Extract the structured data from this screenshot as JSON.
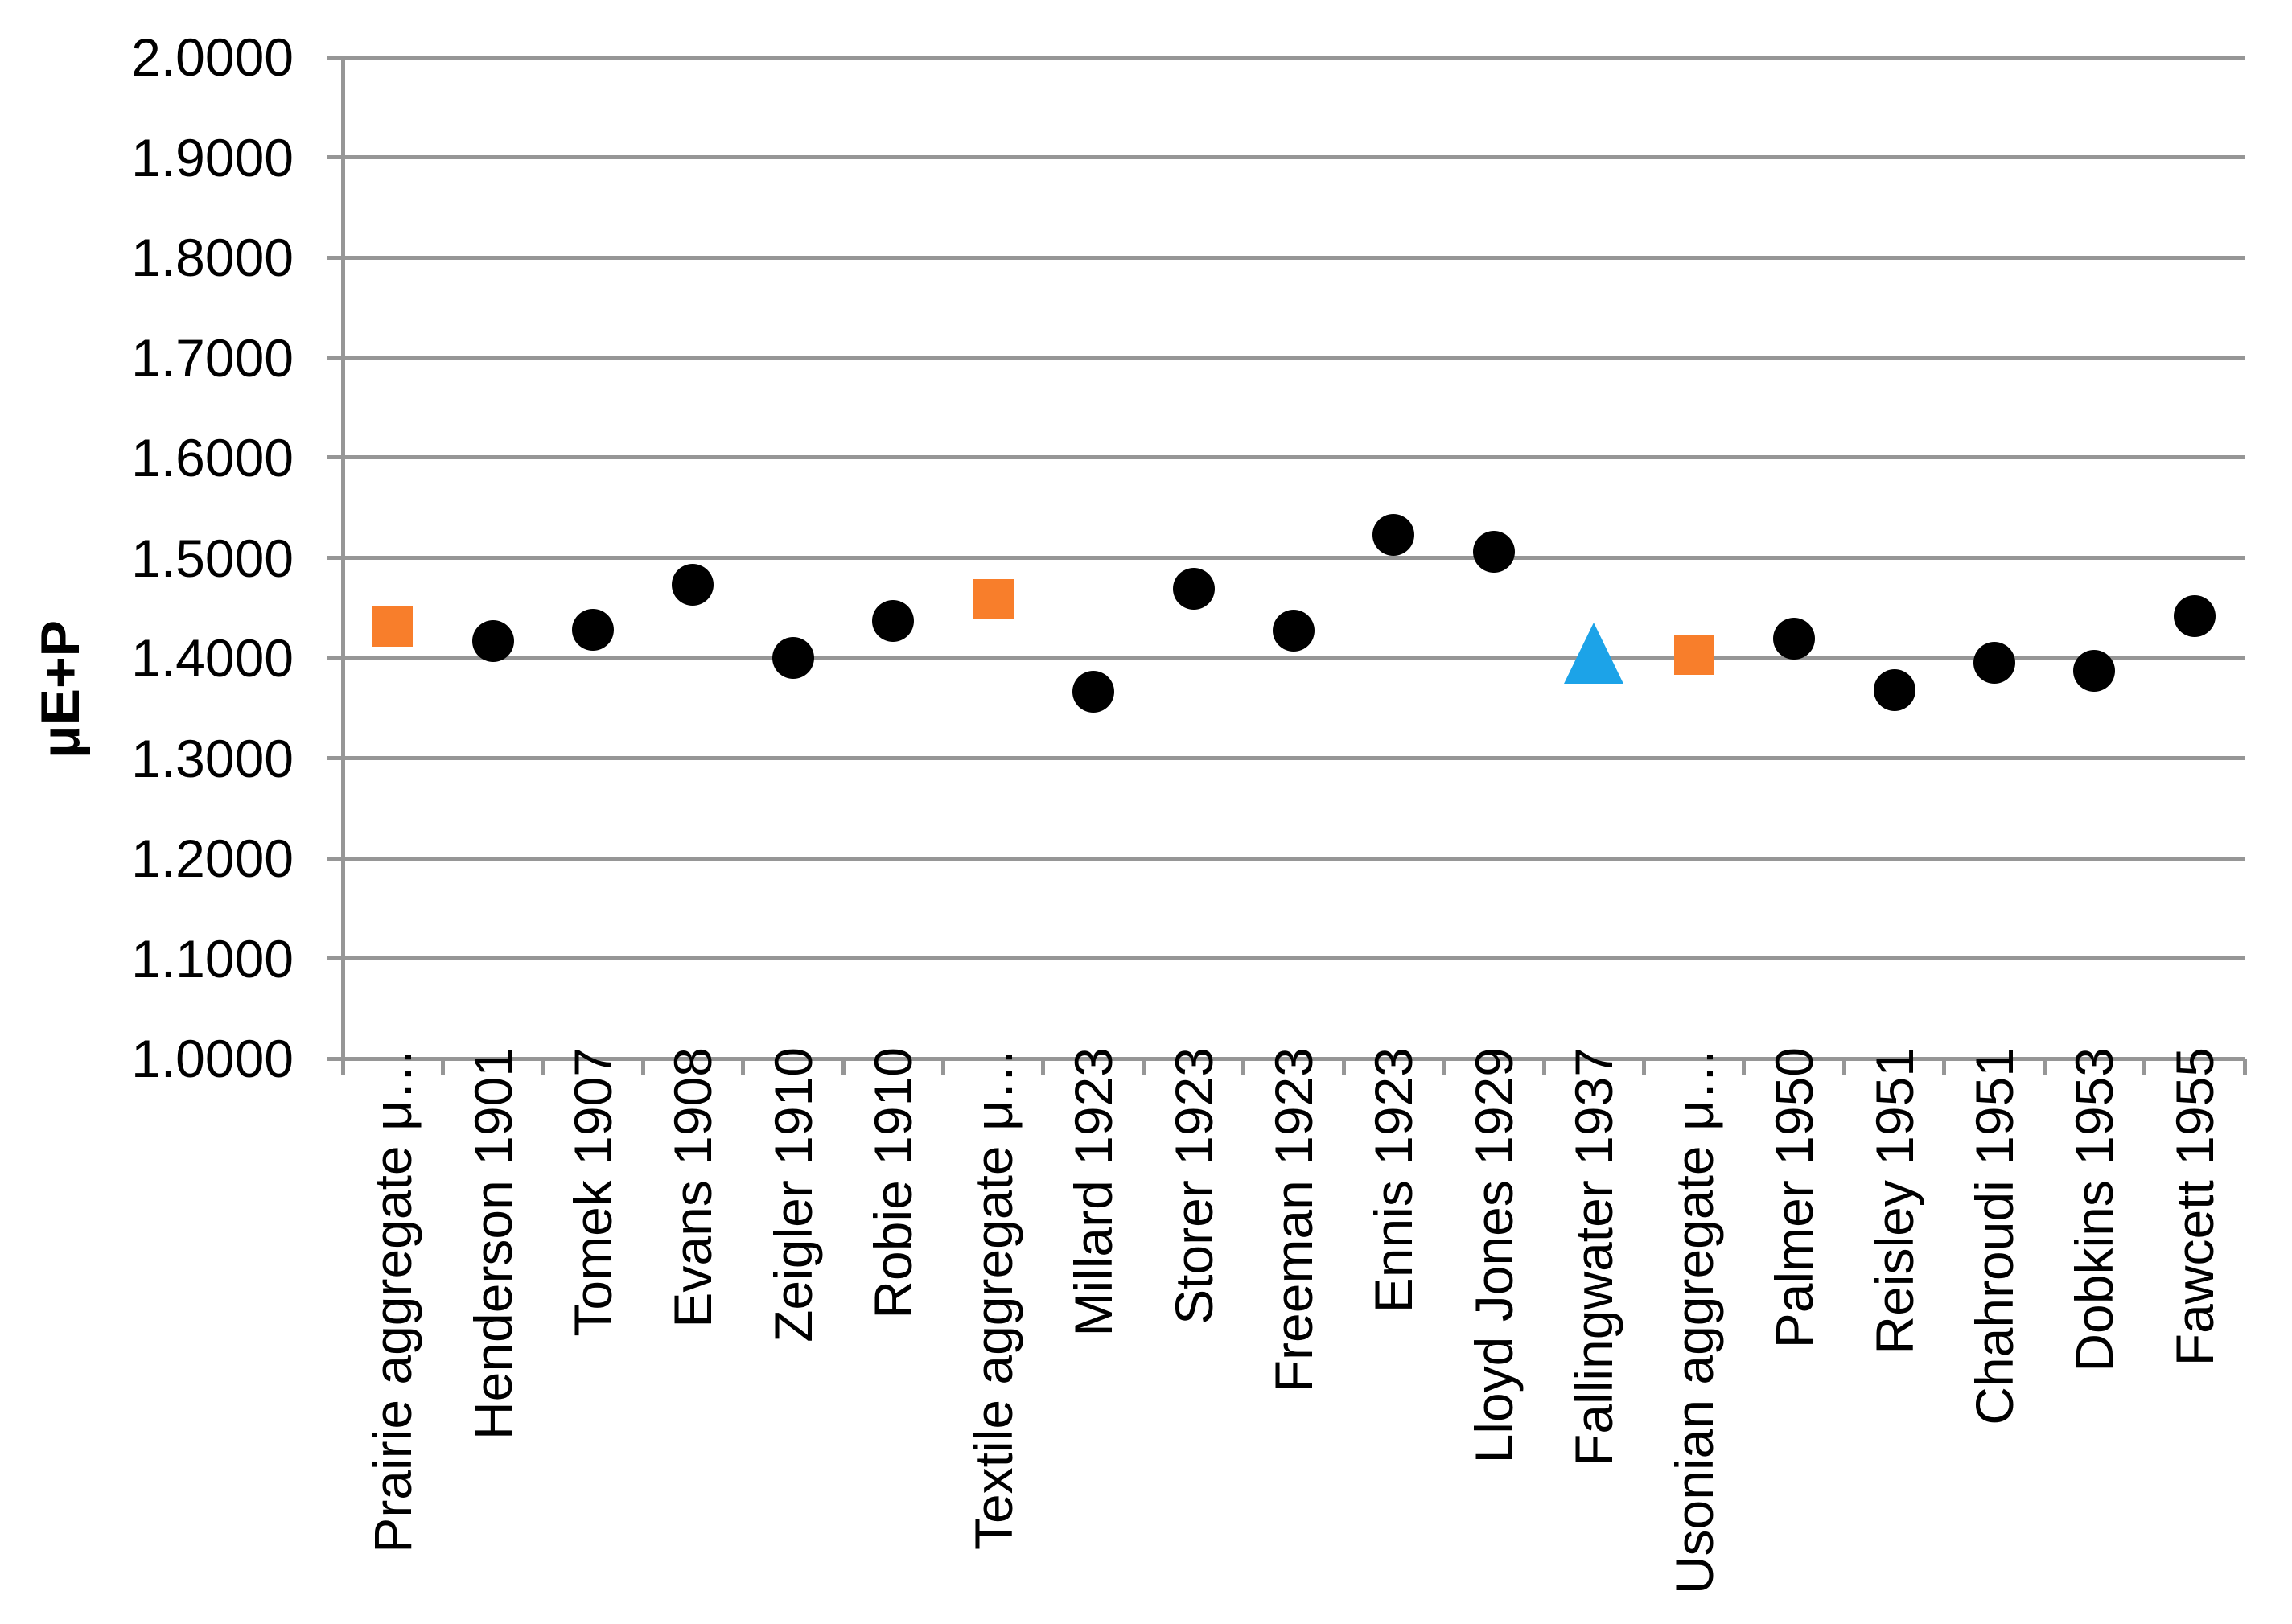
{
  "chart_data": {
    "type": "scatter",
    "title": "",
    "xlabel": "",
    "ylabel": "μE+P",
    "ylim": [
      1.0,
      2.0
    ],
    "ytick_step": 0.1,
    "ytick_labels": [
      "2.0000",
      "1.9000",
      "1.8000",
      "1.7000",
      "1.6000",
      "1.5000",
      "1.4000",
      "1.3000",
      "1.2000",
      "1.1000",
      "1.0000"
    ],
    "grid": "horizontal",
    "legend_position": "none",
    "categories": [
      "Prairie aggregate μ…",
      "Henderson 1901",
      "Tomek 1907",
      "Evans 1908",
      "Zeigler 1910",
      "Robie 1910",
      "Textile aggregate μ…",
      "Millard 1923",
      "Storer 1923",
      "Freeman 1923",
      "Ennis 1923",
      "Lloyd Jones 1929",
      "Fallingwater 1937",
      "Usonian aggregate μ…",
      "Palmer 1950",
      "Reisley 1951",
      "Chahroudi 1951",
      "Dobkins 1953",
      "Fawcett 1955"
    ],
    "points": [
      {
        "category": "Prairie aggregate μ…",
        "value": 1.431,
        "marker": "square"
      },
      {
        "category": "Henderson 1901",
        "value": 1.417,
        "marker": "circle"
      },
      {
        "category": "Tomek 1907",
        "value": 1.428,
        "marker": "circle"
      },
      {
        "category": "Evans 1908",
        "value": 1.473,
        "marker": "circle"
      },
      {
        "category": "Zeigler 1910",
        "value": 1.4,
        "marker": "circle"
      },
      {
        "category": "Robie 1910",
        "value": 1.437,
        "marker": "circle"
      },
      {
        "category": "Textile aggregate μ…",
        "value": 1.459,
        "marker": "square"
      },
      {
        "category": "Millard 1923",
        "value": 1.366,
        "marker": "circle"
      },
      {
        "category": "Storer 1923",
        "value": 1.469,
        "marker": "circle"
      },
      {
        "category": "Freeman 1923",
        "value": 1.427,
        "marker": "circle"
      },
      {
        "category": "Ennis 1923",
        "value": 1.523,
        "marker": "circle"
      },
      {
        "category": "Lloyd Jones 1929",
        "value": 1.506,
        "marker": "circle"
      },
      {
        "category": "Fallingwater 1937",
        "value": 1.405,
        "marker": "triangle"
      },
      {
        "category": "Usonian aggregate μ…",
        "value": 1.403,
        "marker": "square"
      },
      {
        "category": "Palmer 1950",
        "value": 1.419,
        "marker": "circle"
      },
      {
        "category": "Reisley 1951",
        "value": 1.368,
        "marker": "circle"
      },
      {
        "category": "Chahroudi 1951",
        "value": 1.395,
        "marker": "circle"
      },
      {
        "category": "Dobkins 1953",
        "value": 1.387,
        "marker": "circle"
      },
      {
        "category": "Fawcett 1955",
        "value": 1.442,
        "marker": "circle"
      }
    ],
    "marker_styles": {
      "circle": {
        "color": "#000000"
      },
      "square": {
        "color": "#F87E2B"
      },
      "triangle": {
        "color": "#1CA3E8"
      }
    }
  },
  "colors": {
    "gridline": "#969696",
    "axis": "#969696",
    "text": "#000000",
    "background": "#FFFFFF"
  }
}
